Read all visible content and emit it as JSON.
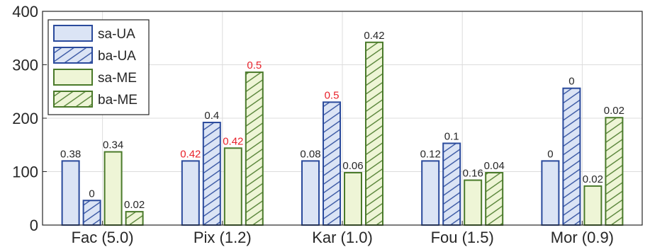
{
  "chart_data": {
    "type": "bar",
    "categories": [
      "Fac (5.0)",
      "Pix (1.2)",
      "Kar (1.0)",
      "Fou (1.5)",
      "Mor (0.9)"
    ],
    "ylim": [
      0,
      400
    ],
    "yticks": [
      0,
      100,
      200,
      300,
      400
    ],
    "grid": true,
    "legend_position": "top-left",
    "series": [
      {
        "name": "sa-UA",
        "values": [
          120,
          120,
          120,
          120,
          120
        ],
        "labels": [
          "0.38",
          "0.42",
          "0.08",
          "0.12",
          "0"
        ],
        "label_red": [
          false,
          true,
          false,
          false,
          false
        ],
        "edge": "#2a4a9c",
        "fill": "#dbe4f5",
        "hatch": false
      },
      {
        "name": "ba-UA",
        "values": [
          46,
          192,
          230,
          153,
          256
        ],
        "labels": [
          "0",
          "0.4",
          "0.5",
          "0.1",
          "0"
        ],
        "label_red": [
          false,
          false,
          true,
          false,
          false
        ],
        "edge": "#2a4a9c",
        "fill": "#dbe4f5",
        "hatch": true
      },
      {
        "name": "sa-ME",
        "values": [
          137,
          144,
          98,
          84,
          73
        ],
        "labels": [
          "0.34",
          "0.42",
          "0.06",
          "0.16",
          "0.02"
        ],
        "label_red": [
          false,
          true,
          false,
          false,
          false
        ],
        "edge": "#4a7a2a",
        "fill": "#eef5d6",
        "hatch": false
      },
      {
        "name": "ba-ME",
        "values": [
          25,
          286,
          342,
          98,
          201
        ],
        "labels": [
          "0.02",
          "0.5",
          "0.42",
          "0.04",
          "0.02"
        ],
        "label_red": [
          false,
          true,
          false,
          false,
          false
        ],
        "edge": "#4a7a2a",
        "fill": "#eef5d6",
        "hatch": true
      }
    ]
  }
}
